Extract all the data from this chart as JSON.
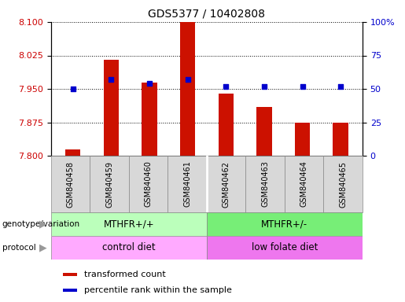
{
  "title": "GDS5377 / 10402808",
  "samples": [
    "GSM840458",
    "GSM840459",
    "GSM840460",
    "GSM840461",
    "GSM840462",
    "GSM840463",
    "GSM840464",
    "GSM840465"
  ],
  "transformed_count": [
    7.814,
    8.015,
    7.965,
    8.1,
    7.94,
    7.91,
    7.875,
    7.875
  ],
  "percentile_rank": [
    50,
    57,
    54,
    57,
    52,
    52,
    52,
    52
  ],
  "ylim_left": [
    7.8,
    8.1
  ],
  "ylim_right": [
    0,
    100
  ],
  "yticks_left": [
    7.8,
    7.875,
    7.95,
    8.025,
    8.1
  ],
  "yticks_right": [
    0,
    25,
    50,
    75,
    100
  ],
  "bar_color": "#cc1100",
  "dot_color": "#0000cc",
  "bg_color": "#ffffff",
  "genotype_groups": [
    {
      "label": "MTHFR+/+",
      "start": 0,
      "end": 4,
      "color": "#bbffbb"
    },
    {
      "label": "MTHFR+/-",
      "start": 4,
      "end": 8,
      "color": "#77ee77"
    }
  ],
  "protocol_groups": [
    {
      "label": "control diet",
      "start": 0,
      "end": 4,
      "color": "#ffaaff"
    },
    {
      "label": "low folate diet",
      "start": 4,
      "end": 8,
      "color": "#ee77ee"
    }
  ],
  "legend_items": [
    {
      "label": "transformed count",
      "color": "#cc1100"
    },
    {
      "label": "percentile rank within the sample",
      "color": "#0000cc"
    }
  ],
  "right_axis_color": "#0000cc",
  "left_tick_color": "#cc0000",
  "bar_width": 0.4
}
